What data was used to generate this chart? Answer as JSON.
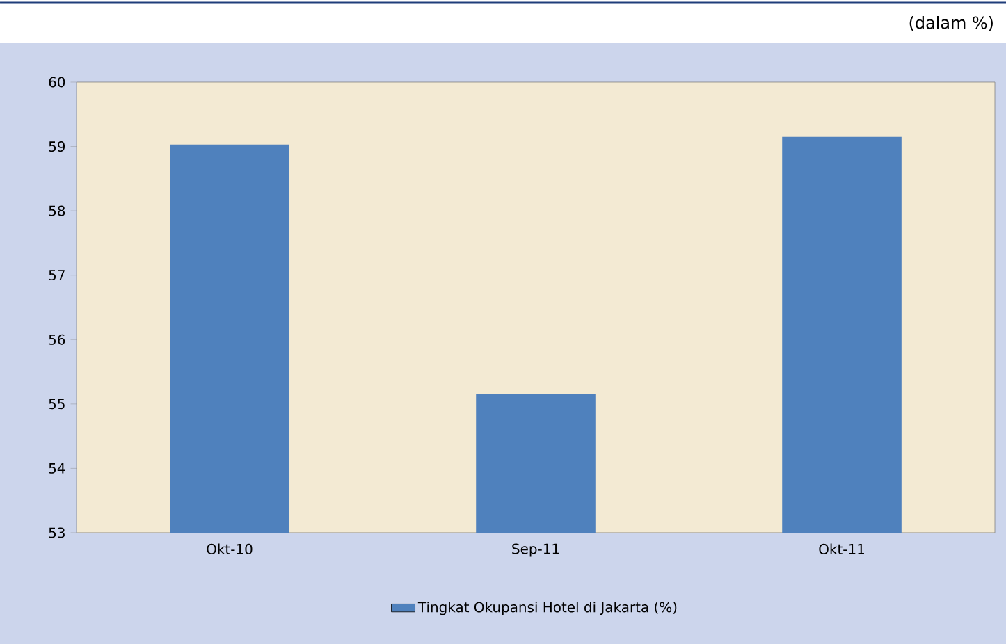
{
  "chart_data": {
    "type": "bar",
    "categories": [
      "Okt-10",
      "Sep-11",
      "Okt-11"
    ],
    "series": [
      {
        "name": "Tingkat Okupansi Hotel di Jakarta (%)",
        "color": "#4f81bd",
        "values": [
          59.03,
          55.15,
          59.15
        ]
      }
    ],
    "ylim": [
      53,
      60
    ],
    "yticks": [
      53,
      54,
      55,
      56,
      57,
      58,
      59,
      60
    ],
    "legend": "bottom",
    "annotations": [
      "(dalam %)"
    ]
  }
}
